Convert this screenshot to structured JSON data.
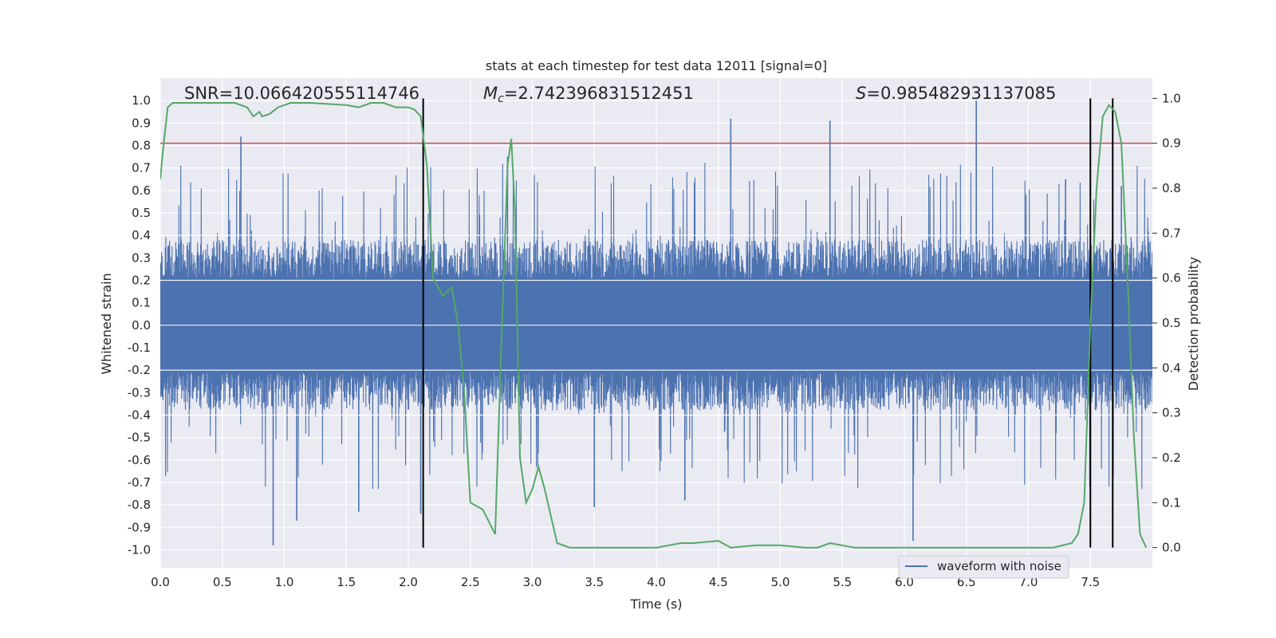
{
  "chart_data": {
    "type": "line",
    "title": "stats at each timestep for test data 12011 [signal=0]",
    "xlabel": "Time (s)",
    "ylabel_left": "Whitened strain",
    "ylabel_right": "Detection probability",
    "xlim": [
      0.0,
      8.0
    ],
    "ylim_left": [
      -1.08,
      1.1
    ],
    "ylim_right": [
      -0.045,
      1.045
    ],
    "x_ticks": [
      "0.0",
      "0.5",
      "1.0",
      "1.5",
      "2.0",
      "2.5",
      "3.0",
      "3.5",
      "4.0",
      "4.5",
      "5.0",
      "5.5",
      "6.0",
      "6.5",
      "7.0",
      "7.5"
    ],
    "x_tick_values": [
      0,
      0.5,
      1,
      1.5,
      2,
      2.5,
      3,
      3.5,
      4,
      4.5,
      5,
      5.5,
      6,
      6.5,
      7,
      7.5
    ],
    "y_ticks_left": [
      "1.0",
      "0.9",
      "0.8",
      "0.7",
      "0.6",
      "0.5",
      "0.4",
      "0.3",
      "0.2",
      "0.1",
      "0.0",
      "-0.1",
      "-0.2",
      "-0.3",
      "-0.4",
      "-0.5",
      "-0.6",
      "-0.7",
      "-0.8",
      "-0.9",
      "-1.0"
    ],
    "y_tick_values_left": [
      1.0,
      0.9,
      0.8,
      0.7,
      0.6,
      0.5,
      0.4,
      0.3,
      0.2,
      0.1,
      0.0,
      -0.1,
      -0.2,
      -0.3,
      -0.4,
      -0.5,
      -0.6,
      -0.7,
      -0.8,
      -0.9,
      -1.0
    ],
    "y_ticks_right": [
      "1.0",
      "0.9",
      "0.8",
      "0.7",
      "0.6",
      "0.5",
      "0.4",
      "0.3",
      "0.2",
      "0.1",
      "0.0"
    ],
    "y_tick_values_right": [
      1.0,
      0.9,
      0.8,
      0.7,
      0.6,
      0.5,
      0.4,
      0.3,
      0.2,
      0.1,
      0.0
    ],
    "annotations": {
      "snr": "SNR=10.066420555114746",
      "mc_symbol": "M",
      "mc_subscript": "c",
      "mc_value": "=2.742396831512451",
      "s_symbol": "S",
      "s_value": "=0.985482931137085"
    },
    "threshold": {
      "axis": "right",
      "value": 0.9,
      "color": "#c44e52"
    },
    "vertical_lines": [
      2.12,
      7.5,
      7.68
    ],
    "vertical_line_range_right": [
      0.0,
      1.0
    ],
    "legend": {
      "label": "waveform with noise",
      "placement": "lower-right"
    },
    "series": [
      {
        "name": "waveform with noise",
        "axis": "left",
        "color": "#4c72b0",
        "kind": "noise-envelope",
        "typical_amplitude": 0.38,
        "peaks": [
          {
            "x": 0.65,
            "y": 0.84
          },
          {
            "x": 0.91,
            "y": -0.98
          },
          {
            "x": 1.1,
            "y": -0.87
          },
          {
            "x": 1.6,
            "y": -0.83
          },
          {
            "x": 2.1,
            "y": -0.84
          },
          {
            "x": 2.8,
            "y": 0.75
          },
          {
            "x": 3.5,
            "y": -0.81
          },
          {
            "x": 4.23,
            "y": -0.78
          },
          {
            "x": 4.6,
            "y": 0.92
          },
          {
            "x": 5.4,
            "y": 0.91
          },
          {
            "x": 6.07,
            "y": -0.96
          },
          {
            "x": 6.58,
            "y": 1.0
          },
          {
            "x": 7.3,
            "y": 0.65
          },
          {
            "x": 7.75,
            "y": 0.62
          }
        ]
      },
      {
        "name": "",
        "axis": "right",
        "color": "#55a868",
        "x": [
          0.0,
          0.02,
          0.06,
          0.1,
          0.2,
          0.4,
          0.6,
          0.7,
          0.75,
          0.8,
          0.82,
          0.88,
          0.95,
          1.05,
          1.2,
          1.5,
          1.6,
          1.7,
          1.8,
          1.9,
          2.0,
          2.05,
          2.1,
          2.15,
          2.2,
          2.28,
          2.35,
          2.4,
          2.45,
          2.5,
          2.6,
          2.7,
          2.75,
          2.8,
          2.83,
          2.86,
          2.9,
          2.95,
          3.0,
          3.05,
          3.1,
          3.15,
          3.2,
          3.3,
          3.5,
          3.8,
          4.0,
          4.1,
          4.2,
          4.3,
          4.5,
          4.6,
          4.8,
          5.0,
          5.2,
          5.3,
          5.4,
          5.6,
          5.8,
          6.0,
          6.5,
          7.0,
          7.2,
          7.35,
          7.4,
          7.45,
          7.5,
          7.55,
          7.6,
          7.65,
          7.7,
          7.75,
          7.8,
          7.85,
          7.9,
          7.95
        ],
        "y": [
          0.82,
          0.88,
          0.98,
          0.99,
          0.99,
          0.99,
          0.99,
          0.98,
          0.96,
          0.97,
          0.96,
          0.965,
          0.98,
          0.99,
          0.99,
          0.985,
          0.98,
          0.99,
          0.99,
          0.98,
          0.98,
          0.975,
          0.96,
          0.85,
          0.6,
          0.56,
          0.58,
          0.5,
          0.35,
          0.1,
          0.085,
          0.03,
          0.45,
          0.85,
          0.91,
          0.75,
          0.2,
          0.1,
          0.13,
          0.18,
          0.13,
          0.07,
          0.01,
          0.0,
          0.0,
          0.0,
          0.0,
          0.005,
          0.01,
          0.01,
          0.015,
          0.0,
          0.005,
          0.005,
          0.0,
          0.0,
          0.01,
          0.0,
          0.0,
          0.0,
          0.0,
          0.0,
          0.0,
          0.01,
          0.03,
          0.1,
          0.5,
          0.8,
          0.96,
          0.985,
          0.97,
          0.9,
          0.6,
          0.25,
          0.03,
          0.0
        ]
      }
    ]
  }
}
